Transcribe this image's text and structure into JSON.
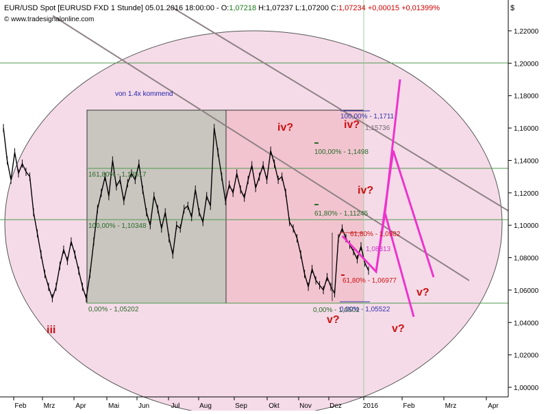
{
  "header": {
    "symbol": "EUR/USD Spot [EURUSD FXD  1 Stunde] 05.01.2016 18:00:00 - ",
    "open_label": "O:",
    "open": "1,07218",
    "high_label": " H:",
    "high": "1,07237",
    "low_label": " L:",
    "low": "1,07200",
    "close_label": " C:",
    "close": "1,07234",
    "change": " +0,00015 +0,01399%",
    "website": "© www.tradesignalonline.com",
    "currency_symbol": "$"
  },
  "colors": {
    "background": "#ffffff",
    "ellipse_fill": "#f5dbe8",
    "gray_box": "#c9c5bf",
    "pink_box": "#f2c4d0",
    "green_line": "#4c9a4c",
    "wave_label": "#cc1111",
    "projection": "#ee33cc",
    "trend_line": "#8e8284",
    "open_color": "#1a7a1a",
    "close_color": "#d10000",
    "note_color": "#2222aa"
  },
  "annotations": {
    "note": "von 1.4x kommend",
    "wave_iii": "iii",
    "wave_iv_1": "iv?",
    "wave_iv_2": "iv?",
    "wave_iv_3": "iv?",
    "wave_v_1": "v?",
    "wave_v_2": "v?",
    "wave_v_3": "v?",
    "fib_161": "161,80% - 1,13517",
    "fib_100_left": "100,00% - 1,10348",
    "fib_0_left": "0,00% - 1,05202",
    "fib_100_mid": "100,00% - 1,1498",
    "fib_618_mid": "61,80% - 1,11245",
    "fib_0_mid": "0,00% - 1,0502",
    "fib_100_top": "100,00% - 1,1711",
    "fib_level_2": "1,15736",
    "fib_618_small": "61,80% - 1,0982",
    "fib_level_1": "1,08313",
    "fib_618_low": "61,80% - 1,06977",
    "fib_0_low": "0,00% - 1,05522"
  },
  "chart_data": {
    "type": "line",
    "title": "EUR/USD Spot [EURUSD FXD 1 Stunde]",
    "x": [
      "Feb",
      "Mrz",
      "Apr",
      "Mai",
      "Jun",
      "Jul",
      "Aug",
      "Sep",
      "Okt",
      "Nov",
      "Dez",
      "2016",
      "Feb",
      "Mrz",
      "Apr"
    ],
    "yticks": [
      "1,22000",
      "1,20000",
      "1,18000",
      "1,16000",
      "1,14000",
      "1,12000",
      "1,10000",
      "1,08000",
      "1,06000",
      "1,04000",
      "1,02000",
      "1,00000"
    ],
    "ylim": [
      0.99,
      1.232
    ],
    "ylabel": "$",
    "grid": false,
    "series": [
      {
        "values": [
          [
            0,
            1.16
          ],
          [
            1,
            1.14
          ],
          [
            2,
            1.128
          ],
          [
            3,
            1.145
          ],
          [
            4,
            1.132
          ],
          [
            5,
            1.138
          ],
          [
            6,
            1.133
          ],
          [
            7,
            1.13
          ],
          [
            8,
            1.108
          ],
          [
            9,
            1.095
          ],
          [
            10,
            1.082
          ],
          [
            11,
            1.07
          ],
          [
            12,
            1.062
          ],
          [
            13,
            1.055
          ],
          [
            14,
            1.062
          ],
          [
            15,
            1.075
          ],
          [
            16,
            1.085
          ],
          [
            17,
            1.078
          ],
          [
            18,
            1.09
          ],
          [
            19,
            1.082
          ],
          [
            20,
            1.072
          ],
          [
            21,
            1.062
          ],
          [
            22,
            1.055
          ],
          [
            23,
            1.07
          ],
          [
            24,
            1.09
          ],
          [
            25,
            1.11
          ],
          [
            26,
            1.12
          ],
          [
            27,
            1.13
          ],
          [
            28,
            1.118
          ],
          [
            29,
            1.14
          ],
          [
            30,
            1.124
          ],
          [
            31,
            1.128
          ],
          [
            32,
            1.115
          ],
          [
            33,
            1.126
          ],
          [
            34,
            1.132
          ],
          [
            35,
            1.128
          ],
          [
            36,
            1.138
          ],
          [
            37,
            1.122
          ],
          [
            38,
            1.108
          ],
          [
            39,
            1.1
          ],
          [
            40,
            1.118
          ],
          [
            41,
            1.11
          ],
          [
            42,
            1.098
          ],
          [
            43,
            1.108
          ],
          [
            44,
            1.092
          ],
          [
            45,
            1.082
          ],
          [
            46,
            1.1
          ],
          [
            47,
            1.098
          ],
          [
            48,
            1.11
          ],
          [
            49,
            1.112
          ],
          [
            50,
            1.105
          ],
          [
            51,
            1.122
          ],
          [
            52,
            1.108
          ],
          [
            53,
            1.102
          ],
          [
            54,
            1.118
          ],
          [
            55,
            1.112
          ],
          [
            56,
            1.16
          ],
          [
            57,
            1.145
          ],
          [
            58,
            1.13
          ],
          [
            59,
            1.115
          ],
          [
            60,
            1.125
          ],
          [
            61,
            1.12
          ],
          [
            62,
            1.132
          ],
          [
            63,
            1.122
          ],
          [
            64,
            1.117
          ],
          [
            65,
            1.128
          ],
          [
            66,
            1.137
          ],
          [
            67,
            1.123
          ],
          [
            68,
            1.13
          ],
          [
            69,
            1.137
          ],
          [
            70,
            1.128
          ],
          [
            71,
            1.146
          ],
          [
            72,
            1.138
          ],
          [
            73,
            1.128
          ],
          [
            74,
            1.13
          ],
          [
            75,
            1.12
          ],
          [
            76,
            1.102
          ],
          [
            77,
            1.098
          ],
          [
            78,
            1.092
          ],
          [
            79,
            1.082
          ],
          [
            80,
            1.07
          ],
          [
            81,
            1.062
          ],
          [
            82,
            1.073
          ],
          [
            83,
            1.066
          ],
          [
            84,
            1.063
          ],
          [
            85,
            1.06
          ],
          [
            86,
            1.068
          ],
          [
            87,
            1.062
          ],
          [
            88,
            1.058
          ],
          [
            89,
            1.092
          ],
          [
            90,
            1.098
          ],
          [
            91,
            1.092
          ],
          [
            92,
            1.088
          ],
          [
            93,
            1.084
          ],
          [
            94,
            1.079
          ],
          [
            95,
            1.087
          ],
          [
            96,
            1.077
          ],
          [
            97,
            1.072
          ]
        ]
      }
    ]
  }
}
